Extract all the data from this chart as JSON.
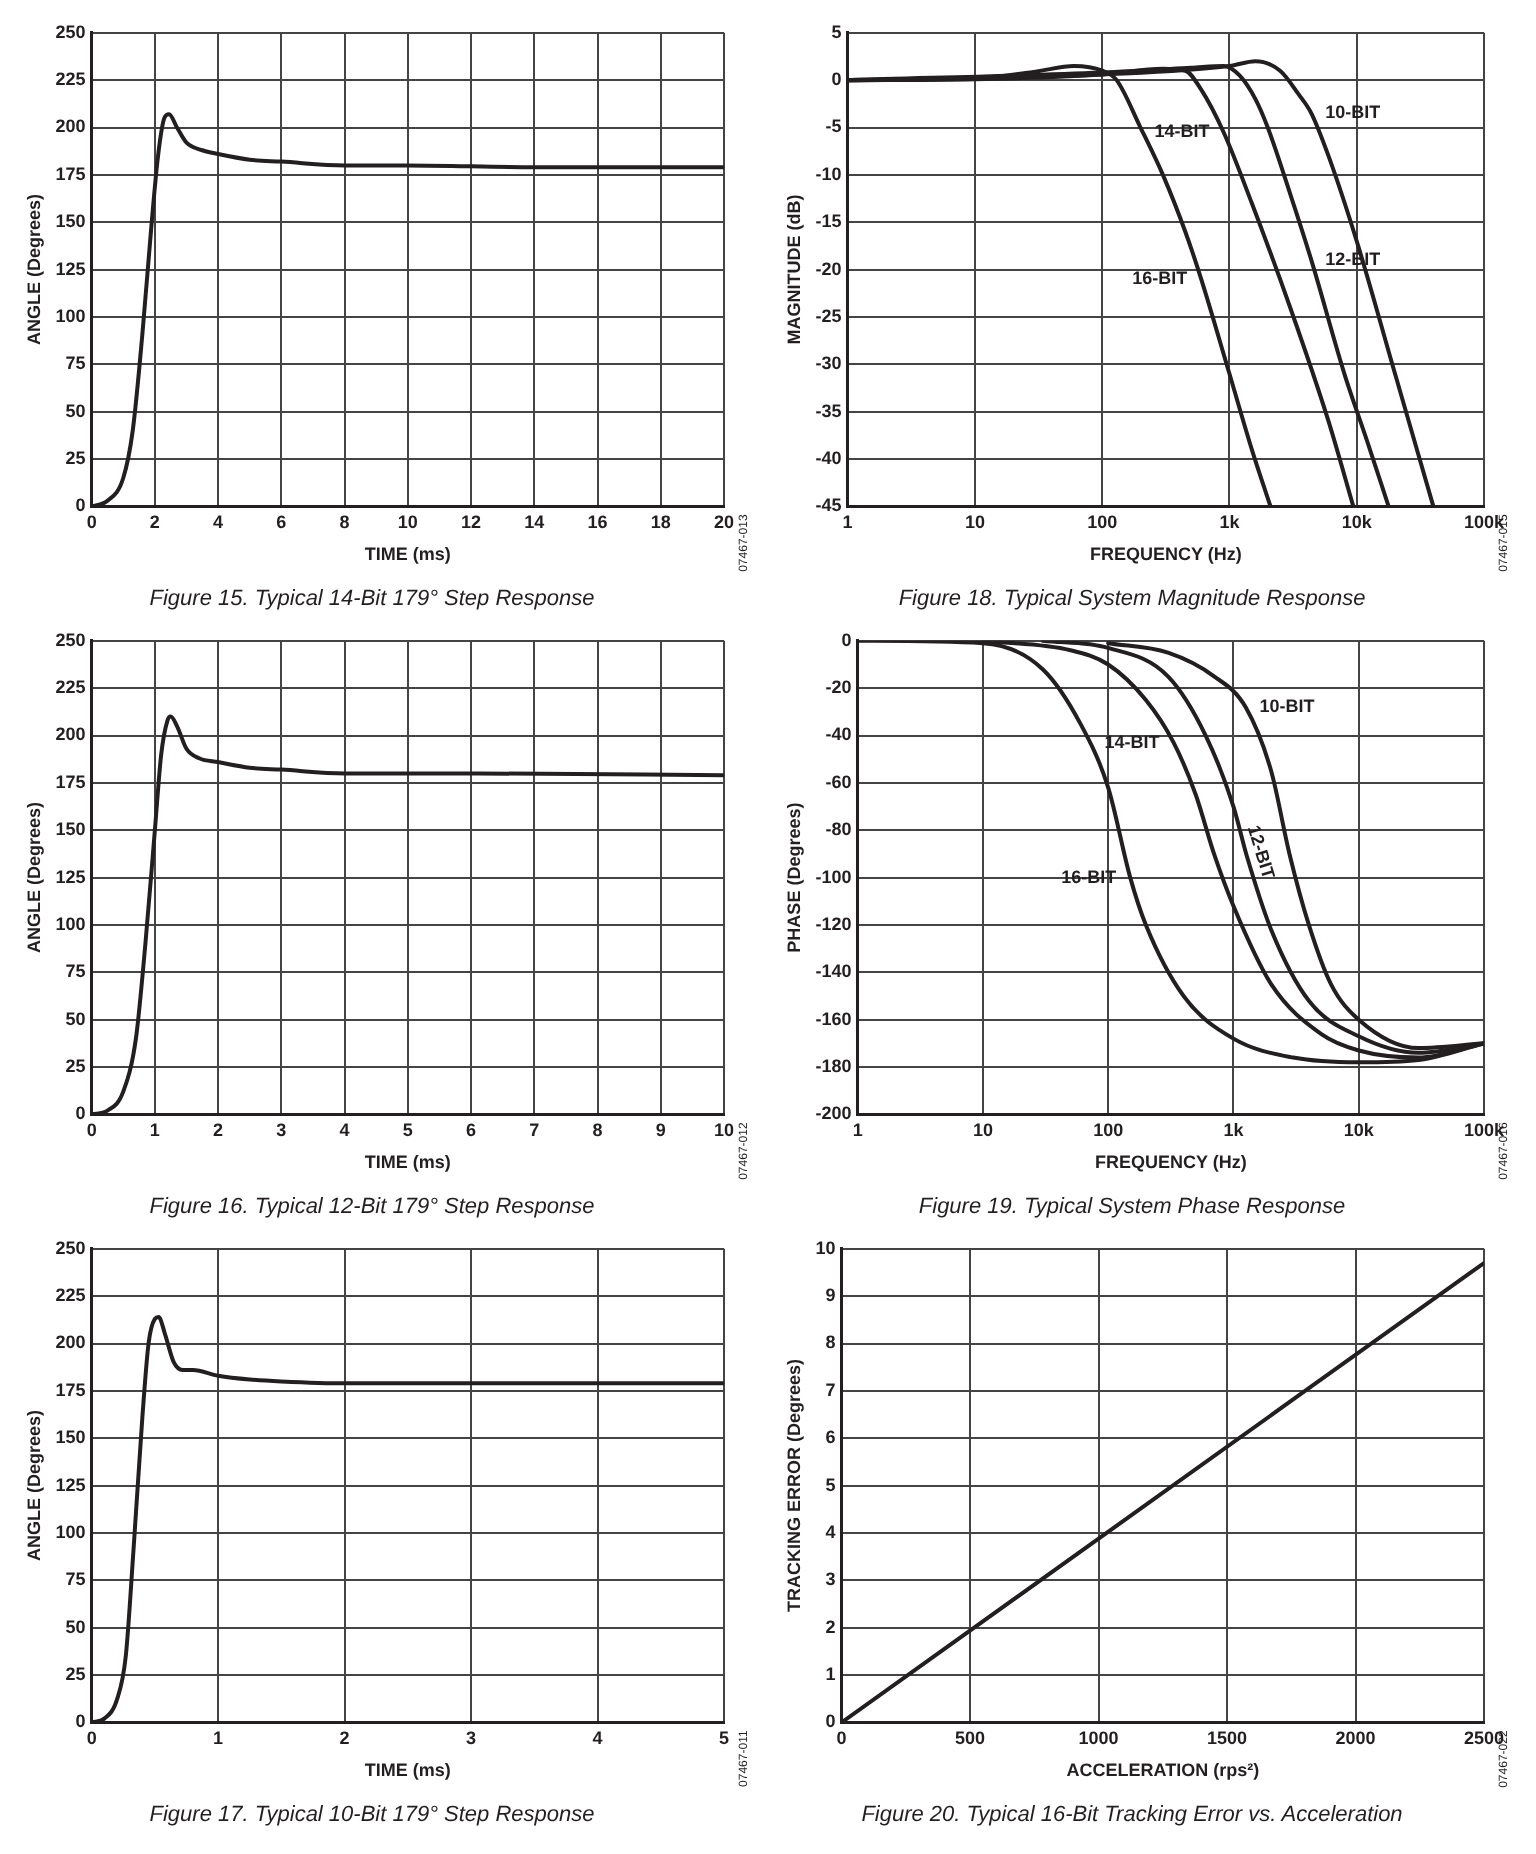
{
  "chart_data": [
    {
      "type": "line",
      "title": "Figure 15. Typical 14-Bit 179° Step Response",
      "xlabel": "TIME (ms)",
      "ylabel": "ANGLE (Degrees)",
      "xlim": [
        0,
        20
      ],
      "xticks": [
        0,
        2,
        4,
        6,
        8,
        10,
        12,
        14,
        16,
        18,
        20
      ],
      "ylim": [
        0,
        250
      ],
      "yticks": [
        0,
        25,
        50,
        75,
        100,
        125,
        150,
        175,
        200,
        225,
        250
      ],
      "grid": true,
      "legend": false,
      "marker": "none",
      "line_style": "solid",
      "annotations": [
        "07467-013"
      ],
      "series": [
        {
          "color": "#231f20",
          "x": [
            0,
            0.5,
            1,
            1.3,
            1.6,
            1.9,
            2.1,
            2.3,
            2.45,
            2.7,
            3,
            3.5,
            4,
            5,
            6,
            8,
            10,
            14,
            20
          ],
          "values": [
            0,
            3,
            15,
            40,
            90,
            150,
            185,
            205,
            207,
            200,
            192,
            188,
            186,
            183,
            182,
            180,
            180,
            179,
            179
          ]
        }
      ]
    },
    {
      "type": "line",
      "title": "Figure 18. Typical System Magnitude Response",
      "xlabel": "FREQUENCY (Hz)",
      "ylabel": "MAGNITUDE (dB)",
      "log": "x",
      "xlim": [
        1,
        100000
      ],
      "xticks": [
        1,
        10,
        100,
        {
          "value": 1000,
          "label": "1k"
        },
        {
          "value": 10000,
          "label": "10k"
        },
        {
          "value": 100000,
          "label": "100k"
        }
      ],
      "ylim": [
        -45,
        5
      ],
      "yticks": [
        -45,
        -40,
        -35,
        -30,
        -25,
        -20,
        -15,
        -10,
        -5,
        0,
        5
      ],
      "grid": true,
      "legend": false,
      "marker": "none",
      "line_style": "solid",
      "annotations": [
        "07467-015"
      ],
      "series": [
        {
          "name": "16-BIT",
          "color": "#231f20",
          "x": [
            1,
            10,
            30,
            60,
            100,
            130,
            200,
            300,
            450,
            600,
            1000,
            1500,
            2100
          ],
          "values": [
            0,
            0.2,
            0.9,
            1.5,
            1,
            0,
            -5,
            -10,
            -16,
            -21,
            -31,
            -39,
            -45
          ]
        },
        {
          "name": "14-BIT",
          "color": "#231f20",
          "x": [
            1,
            10,
            100,
            300,
            450,
            600,
            900,
            1500,
            3000,
            6000,
            9400
          ],
          "values": [
            0,
            0.1,
            0.6,
            1.2,
            1,
            -1,
            -5.5,
            -13,
            -24,
            -36,
            -45
          ]
        },
        {
          "name": "12-BIT",
          "color": "#231f20",
          "x": [
            1,
            100,
            500,
            900,
            1200,
            1600,
            2000,
            3000,
            4400,
            8000,
            12000,
            17800
          ],
          "values": [
            0,
            0.8,
            1.3,
            1.5,
            0.5,
            -2,
            -5,
            -12,
            -19,
            -31,
            -38,
            -45
          ]
        },
        {
          "name": "10-BIT",
          "color": "#231f20",
          "x": [
            1,
            10,
            100,
            1000,
            1600,
            2500,
            3500,
            4400,
            6000,
            10000,
            20000,
            40000
          ],
          "values": [
            0,
            0.2,
            0.6,
            1.5,
            2,
            1,
            -1.5,
            -3.5,
            -8,
            -17,
            -31,
            -45
          ]
        }
      ]
    },
    {
      "type": "line",
      "title": "Figure 16. Typical 12-Bit 179° Step Response",
      "xlabel": "TIME (ms)",
      "ylabel": "ANGLE (Degrees)",
      "xlim": [
        0,
        10
      ],
      "xticks": [
        0,
        1,
        2,
        3,
        4,
        5,
        6,
        7,
        8,
        9,
        10
      ],
      "ylim": [
        0,
        250
      ],
      "yticks": [
        0,
        25,
        50,
        75,
        100,
        125,
        150,
        175,
        200,
        225,
        250
      ],
      "grid": true,
      "legend": false,
      "marker": "none",
      "line_style": "solid",
      "annotations": [
        "07467-012"
      ],
      "series": [
        {
          "color": "#231f20",
          "x": [
            0,
            0.25,
            0.5,
            0.7,
            0.85,
            1,
            1.1,
            1.2,
            1.25,
            1.35,
            1.5,
            1.7,
            2,
            2.5,
            3,
            4,
            6,
            10
          ],
          "values": [
            0,
            2,
            12,
            40,
            90,
            150,
            190,
            208,
            210,
            205,
            193,
            188,
            186,
            183,
            182,
            180,
            180,
            179
          ]
        }
      ]
    },
    {
      "type": "line",
      "title": "Figure 19. Typical System Phase Response",
      "xlabel": "FREQUENCY (Hz)",
      "ylabel": "PHASE (Degrees)",
      "log": "x",
      "xlim": [
        1,
        100000
      ],
      "xticks": [
        1,
        10,
        100,
        {
          "value": 1000,
          "label": "1k"
        },
        {
          "value": 10000,
          "label": "10k"
        },
        {
          "value": 100000,
          "label": "100k"
        }
      ],
      "ylim": [
        -200,
        0
      ],
      "yticks": [
        -200,
        -180,
        -160,
        -140,
        -120,
        -100,
        -80,
        -60,
        -40,
        -20,
        0
      ],
      "grid": true,
      "legend": false,
      "marker": "none",
      "line_style": "solid",
      "annotations": [
        "07467-016"
      ],
      "series": [
        {
          "name": "16-BIT",
          "color": "#231f20",
          "x": [
            1,
            10,
            30,
            60,
            100,
            150,
            200,
            400,
            1000,
            3000,
            10000,
            30000,
            100000
          ],
          "values": [
            0,
            -1,
            -12,
            -35,
            -62,
            -100,
            -120,
            -150,
            -168,
            -176,
            -178,
            -177,
            -170
          ]
        },
        {
          "name": "14-BIT",
          "color": "#231f20",
          "x": [
            10,
            50,
            100,
            200,
            333,
            500,
            700,
            1000,
            2000,
            5000,
            10000,
            30000,
            100000
          ],
          "values": [
            0,
            -4,
            -10,
            -25,
            -43,
            -65,
            -90,
            -112,
            -145,
            -166,
            -173,
            -176,
            -170
          ]
        },
        {
          "name": "12-BIT",
          "color": "#231f20",
          "x": [
            30,
            100,
            300,
            600,
            1000,
            1280,
            2000,
            4000,
            10000,
            30000,
            100000
          ],
          "values": [
            0,
            -3,
            -15,
            -40,
            -70,
            -91,
            -122,
            -152,
            -167,
            -174,
            -170
          ]
        },
        {
          "name": "10-BIT",
          "color": "#231f20",
          "x": [
            100,
            300,
            700,
            1250,
            2000,
            2800,
            4000,
            6000,
            10000,
            30000,
            100000
          ],
          "values": [
            -1,
            -5,
            -15,
            -28,
            -55,
            -90,
            -120,
            -145,
            -160,
            -172,
            -170
          ]
        }
      ]
    },
    {
      "type": "line",
      "title": "Figure 17. Typical 10-Bit 179° Step Response",
      "xlabel": "TIME (ms)",
      "ylabel": "ANGLE (Degrees)",
      "xlim": [
        0,
        5
      ],
      "xticks": [
        0,
        1,
        2,
        3,
        4,
        5
      ],
      "ylim": [
        0,
        250
      ],
      "yticks": [
        0,
        25,
        50,
        75,
        100,
        125,
        150,
        175,
        200,
        225,
        250
      ],
      "grid": true,
      "legend": false,
      "marker": "none",
      "line_style": "solid",
      "annotations": [
        "07467-011"
      ],
      "series": [
        {
          "color": "#231f20",
          "x": [
            0,
            0.1,
            0.2,
            0.27,
            0.33,
            0.4,
            0.45,
            0.5,
            0.53,
            0.58,
            0.65,
            0.72,
            0.8,
            1,
            1.25,
            1.5,
            2,
            5
          ],
          "values": [
            0,
            2,
            12,
            35,
            90,
            160,
            200,
            213,
            214,
            205,
            190,
            186,
            186,
            183,
            181,
            180,
            179,
            179
          ]
        }
      ]
    },
    {
      "type": "line",
      "title": "Figure 20. Typical 16-Bit Tracking Error vs. Acceleration",
      "xlabel": "ACCELERATION (rps²)",
      "ylabel": "TRACKING ERROR (Degrees)",
      "xlim": [
        0,
        2500
      ],
      "xticks": [
        0,
        500,
        1000,
        1500,
        2000,
        2500
      ],
      "ylim": [
        0,
        10
      ],
      "yticks": [
        0,
        1,
        2,
        3,
        4,
        5,
        6,
        7,
        8,
        9,
        10
      ],
      "grid": true,
      "legend": false,
      "marker": "none",
      "line_style": "solid",
      "annotations": [
        "07467-022"
      ],
      "series": [
        {
          "color": "#231f20",
          "x": [
            0,
            2500
          ],
          "values": [
            0,
            9.7
          ]
        }
      ]
    }
  ]
}
